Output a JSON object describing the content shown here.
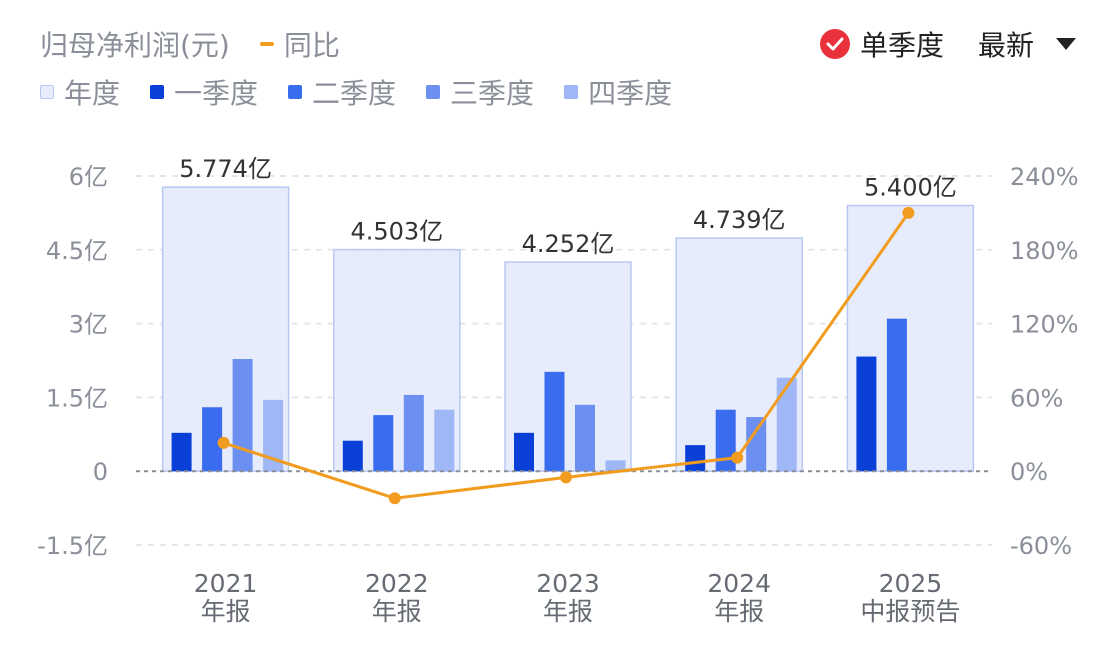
{
  "header": {
    "title": "归母净利润(元)",
    "yoy_label": "同比",
    "single_quarter_label": "单季度",
    "dropdown_value": "最新"
  },
  "legend": [
    {
      "label": "年度",
      "color": "#e6ecfc",
      "border": "#b9c8f2"
    },
    {
      "label": "一季度",
      "color": "#0a3fd8"
    },
    {
      "label": "二季度",
      "color": "#3a6cf0"
    },
    {
      "label": "三季度",
      "color": "#6b90f2"
    },
    {
      "label": "四季度",
      "color": "#9fb7f6"
    }
  ],
  "chart_data": {
    "type": "bar",
    "categories": [
      "2021\n年报",
      "2022\n年报",
      "2023\n年报",
      "2024\n年报",
      "2025\n中报预告"
    ],
    "annual": [
      5.774,
      4.503,
      4.252,
      4.739,
      5.4
    ],
    "annual_labels": [
      "5.774亿",
      "4.503亿",
      "4.252亿",
      "4.739亿",
      "5.400亿"
    ],
    "series": [
      {
        "name": "一季度",
        "values": [
          0.78,
          0.62,
          0.78,
          0.53,
          2.33
        ]
      },
      {
        "name": "二季度",
        "values": [
          1.3,
          1.14,
          2.02,
          1.25,
          3.1
        ]
      },
      {
        "name": "三季度",
        "values": [
          2.28,
          1.55,
          1.35,
          1.1,
          null
        ]
      },
      {
        "name": "四季度",
        "values": [
          1.45,
          1.25,
          0.22,
          1.9,
          null
        ]
      }
    ],
    "yoy": {
      "name": "同比",
      "values": [
        23,
        -22,
        -5,
        11,
        210
      ]
    },
    "y_left": {
      "ticks": [
        6,
        4.5,
        3,
        1.5,
        0,
        -1.5
      ],
      "tick_labels": [
        "6亿",
        "4.5亿",
        "3亿",
        "1.5亿",
        "0",
        "-1.5亿"
      ],
      "range": [
        -1.5,
        6
      ]
    },
    "y_right": {
      "ticks": [
        240,
        180,
        120,
        60,
        0,
        -60
      ],
      "tick_labels": [
        "240%",
        "180%",
        "120%",
        "60%",
        "0%",
        "-60%"
      ],
      "range": [
        -60,
        240
      ]
    },
    "grid": true
  }
}
